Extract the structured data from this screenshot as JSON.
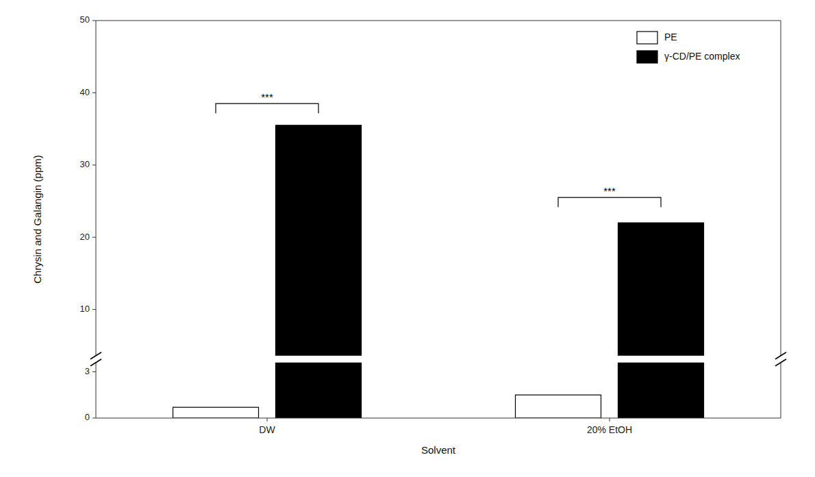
{
  "chart_data": {
    "type": "bar",
    "categories": [
      "DW",
      "20% EtOH"
    ],
    "series": [
      {
        "name": "PE",
        "color": "#ffffff",
        "values": [
          0.7,
          1.5
        ]
      },
      {
        "name": "γ-CD/PE complex",
        "color": "#000000",
        "values": [
          35.5,
          22.0
        ]
      }
    ],
    "xlabel": "Solvent",
    "ylabel": "Chrysin and Galangin (ppm)",
    "ylim": [
      0,
      50
    ],
    "ybreak": 3.6,
    "yticks": [
      0,
      3,
      10,
      20,
      30,
      40,
      50
    ],
    "annotations": [
      {
        "text": "***",
        "x": "DW",
        "y": 38.5
      },
      {
        "text": "***",
        "x": "20% EtOH",
        "y": 25.5
      }
    ],
    "legend": "upper right",
    "grid": false
  }
}
